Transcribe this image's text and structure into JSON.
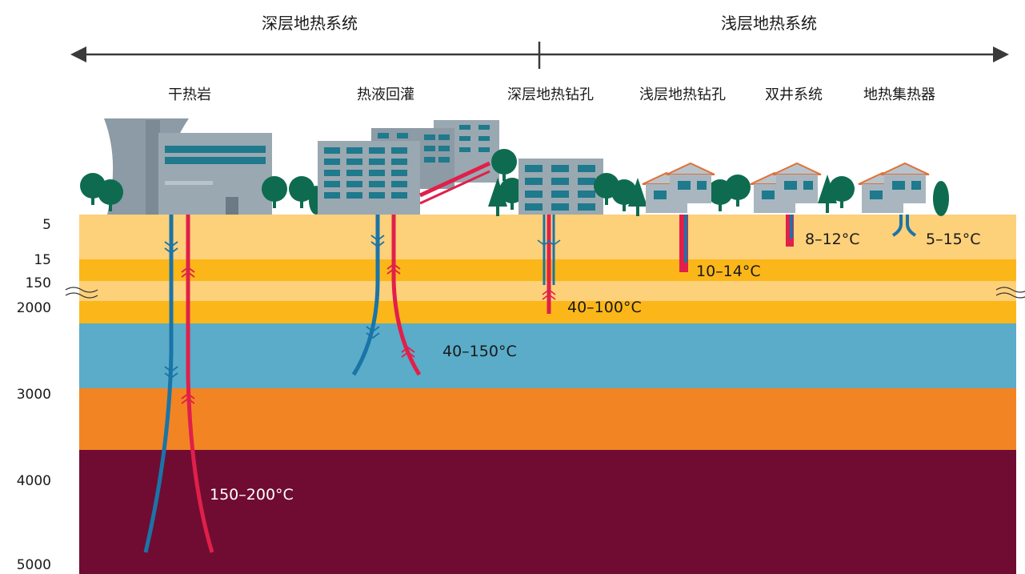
{
  "header": {
    "left_title": "深层地热系统",
    "right_title": "浅层地热系统"
  },
  "systems": [
    {
      "key": "hot-dry-rock",
      "label": "干热岩"
    },
    {
      "key": "hydrothermal-reinjection",
      "label": "热液回灌"
    },
    {
      "key": "deep-borehole",
      "label": "深层地热钻孔"
    },
    {
      "key": "shallow-borehole",
      "label": "浅层地热钻孔"
    },
    {
      "key": "doublet-well",
      "label": "双井系统"
    },
    {
      "key": "ground-collector",
      "label": "地热集热器"
    }
  ],
  "depth_ticks": [
    "5",
    "15",
    "150",
    "2000",
    "3000",
    "4000",
    "5000"
  ],
  "temperatures": {
    "hot_dry_rock": "150–200°C",
    "hydrothermal": "40–150°C",
    "deep_borehole": "40–100°C",
    "shallow_borehole": "10–14°C",
    "doublet_well": "8–12°C",
    "collector": "5–15°C"
  },
  "colors": {
    "layer_light": "#fdd07a",
    "layer_mid": "#fbb719",
    "layer_blue": "#5aacc8",
    "layer_orange": "#f28424",
    "layer_deep": "#700c31",
    "pipe_cold": "#1a74a8",
    "pipe_hot": "#e0204a",
    "tree": "#0e6b50",
    "building": "#8c9ba5",
    "window": "#1e7a8c",
    "roof": "#e07038"
  }
}
